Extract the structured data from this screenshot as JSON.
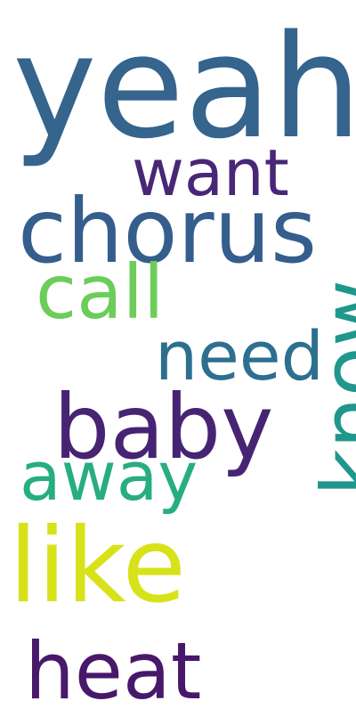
{
  "words": [
    {
      "text": "yeah",
      "color": "#35648d"
    },
    {
      "text": "want",
      "color": "#482777"
    },
    {
      "text": "chorus",
      "color": "#355e8d"
    },
    {
      "text": "call",
      "color": "#6ccd5a"
    },
    {
      "text": "need",
      "color": "#2d6f8e"
    },
    {
      "text": "baby",
      "color": "#472473"
    },
    {
      "text": "away",
      "color": "#27ad81"
    },
    {
      "text": "know",
      "color": "#20978c"
    },
    {
      "text": "like",
      "color": "#d8e219"
    },
    {
      "text": "heat",
      "color": "#48186a"
    }
  ]
}
